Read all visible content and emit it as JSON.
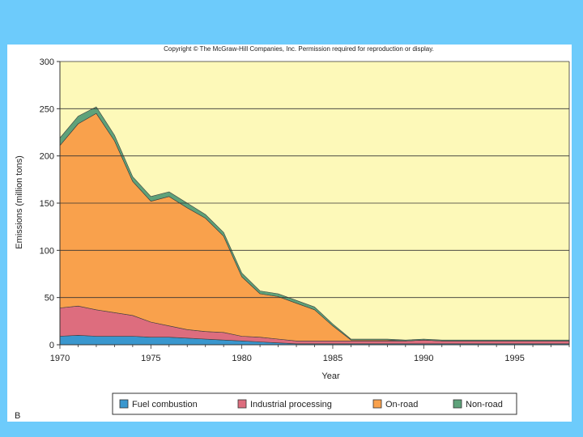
{
  "copyright": "Copyright © The McGraw-Hill Companies, Inc. Permission required for reproduction or display.",
  "panel_label": "B",
  "colors": {
    "background": "#6dcbfb",
    "plot_bg": "#fdf9b9",
    "fuel": "#3a97ce",
    "industrial": "#dd6d7e",
    "onroad": "#f9a14c",
    "nonroad": "#5ea27a"
  },
  "chart_data": {
    "type": "area",
    "stacked": true,
    "title": "",
    "xlabel": "Year",
    "ylabel": "Emissions (million tons)",
    "xlim": [
      1970,
      1998
    ],
    "ylim": [
      0,
      300
    ],
    "xticks": [
      1970,
      1975,
      1980,
      1985,
      1990,
      1995
    ],
    "yticks": [
      0,
      50,
      100,
      150,
      200,
      250,
      300
    ],
    "grid": "horizontal",
    "legend_position": "bottom",
    "x": [
      1970,
      1971,
      1972,
      1973,
      1974,
      1975,
      1976,
      1977,
      1978,
      1979,
      1980,
      1981,
      1982,
      1983,
      1984,
      1985,
      1986,
      1987,
      1988,
      1989,
      1990,
      1991,
      1992,
      1993,
      1994,
      1995,
      1996,
      1997,
      1998
    ],
    "series": [
      {
        "name": "Fuel combustion",
        "values": [
          9,
          10,
          9,
          9,
          9,
          8,
          8,
          7,
          6,
          5,
          4,
          3,
          2,
          1,
          1,
          1,
          1,
          1,
          1,
          1,
          1,
          1,
          1,
          1,
          1,
          1,
          1,
          1,
          1
        ]
      },
      {
        "name": "Industrial processing",
        "values": [
          30,
          31,
          28,
          25,
          22,
          16,
          12,
          9,
          8,
          8,
          5,
          5,
          4,
          3,
          3,
          3,
          3,
          3,
          3,
          3,
          4,
          3,
          3,
          3,
          3,
          3,
          3,
          3,
          3
        ]
      },
      {
        "name": "On-road",
        "values": [
          172,
          193,
          208,
          182,
          142,
          128,
          137,
          129,
          120,
          102,
          63,
          46,
          45,
          40,
          33,
          16,
          1,
          1,
          1,
          0,
          0,
          0,
          0,
          0,
          0,
          0,
          0,
          0,
          0
        ]
      },
      {
        "name": "Non-road",
        "values": [
          8,
          8,
          7,
          6,
          5,
          5,
          5,
          5,
          4,
          4,
          4,
          3,
          3,
          3,
          3,
          2,
          1,
          1,
          1,
          1,
          1,
          1,
          1,
          1,
          1,
          1,
          1,
          1,
          1
        ]
      }
    ]
  }
}
